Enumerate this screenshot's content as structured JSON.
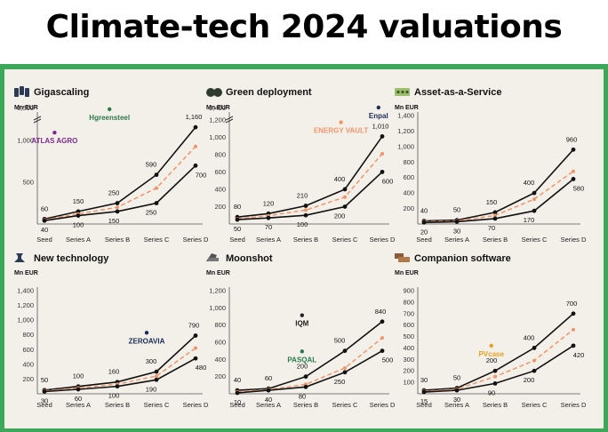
{
  "title": "Climate-tech 2024 valuations",
  "colors": {
    "frame": "#3da85a",
    "panel": "#f3f0ea",
    "series_main": "#111111",
    "series_median": "#f0956a"
  },
  "chart_data": [
    {
      "type": "line",
      "title": "Gigascaling",
      "icon": "battery-stack-icon",
      "ylabel": "Mn EUR",
      "categories": [
        "Seed",
        "Series A",
        "Series B",
        "Series C",
        "Series D"
      ],
      "ylim": [
        0,
        1300
      ],
      "yticks": [
        500,
        1000
      ],
      "ytick_labels": [
        "500",
        "1,000"
      ],
      "axis_break": true,
      "break_label": "3,500",
      "series": [
        {
          "role": "upper",
          "values": [
            60,
            150,
            250,
            590,
            1160
          ],
          "labels": [
            "60",
            "150",
            "250",
            "590",
            "1,160"
          ]
        },
        {
          "role": "middle",
          "values": [
            50,
            120,
            200,
            430,
            930
          ],
          "labels": []
        },
        {
          "role": "lower",
          "values": [
            40,
            100,
            150,
            250,
            700
          ],
          "labels": [
            "40",
            "100",
            "150",
            "250",
            "700"
          ]
        }
      ],
      "companies": [
        {
          "name": "Hgreensteel",
          "icon": "h2-green-steel-logo",
          "point": [
            1.8,
            1280
          ],
          "color": "#2a7a4a"
        },
        {
          "name": "ATLAS AGRO",
          "icon": "atlas-agro-logo",
          "point": [
            0.3,
            1000
          ],
          "color": "#7b2a8c"
        }
      ]
    },
    {
      "type": "line",
      "title": "Green deployment",
      "icon": "solar-panels-icon",
      "ylabel": "Mn EUR",
      "categories": [
        "Seed",
        "Series A",
        "Series B",
        "Series C",
        "Series D"
      ],
      "ylim": [
        0,
        1250
      ],
      "yticks": [
        200,
        400,
        600,
        800,
        1000,
        1200
      ],
      "ytick_labels": [
        "200",
        "400",
        "600",
        "800",
        "1,000",
        "1,200"
      ],
      "axis_break": true,
      "break_label": "2,400",
      "series": [
        {
          "role": "upper",
          "values": [
            80,
            120,
            210,
            400,
            1010
          ],
          "labels": [
            "80",
            "120",
            "210",
            "400",
            "1,010"
          ]
        },
        {
          "role": "middle",
          "values": [
            60,
            95,
            160,
            310,
            810
          ],
          "labels": []
        },
        {
          "role": "lower",
          "values": [
            50,
            70,
            100,
            200,
            600
          ],
          "labels": [
            "50",
            "70",
            "100",
            "200",
            "600"
          ]
        }
      ],
      "companies": [
        {
          "name": "Enpal",
          "icon": "enpal-logo",
          "point": [
            3.9,
            1250
          ],
          "color": "#1b2a5a"
        },
        {
          "name": "ENERGY VAULT",
          "icon": "energy-vault-logo",
          "point": [
            2.9,
            1080
          ],
          "color": "#f0956a"
        }
      ]
    },
    {
      "type": "line",
      "title": "Asset-as-a-Service",
      "icon": "battery-cells-icon",
      "ylabel": "Mn EUR",
      "categories": [
        "Seed",
        "Series A",
        "Series B",
        "Series C",
        "Series D"
      ],
      "ylim": [
        0,
        1400
      ],
      "yticks": [
        200,
        400,
        600,
        800,
        1000,
        1200,
        1400
      ],
      "ytick_labels": [
        "200",
        "400",
        "600",
        "800",
        "1,000",
        "1,200",
        "1,400"
      ],
      "axis_break": false,
      "series": [
        {
          "role": "upper",
          "values": [
            40,
            50,
            150,
            400,
            960
          ],
          "labels": [
            "40",
            "50",
            "150",
            "400",
            "960"
          ]
        },
        {
          "role": "middle",
          "values": [
            30,
            40,
            110,
            320,
            680
          ],
          "labels": []
        },
        {
          "role": "lower",
          "values": [
            20,
            30,
            70,
            170,
            580
          ],
          "labels": [
            "20",
            "30",
            "70",
            "170",
            "580"
          ]
        }
      ],
      "companies": []
    },
    {
      "type": "line",
      "title": "New technology",
      "icon": "flask-icon",
      "ylabel": "Mn EUR",
      "categories": [
        "Seed",
        "Series A",
        "Series B",
        "Series C",
        "Series D"
      ],
      "ylim": [
        0,
        1400
      ],
      "yticks": [
        200,
        400,
        600,
        800,
        1000,
        1200,
        1400
      ],
      "ytick_labels": [
        "200",
        "400",
        "600",
        "800",
        "1,000",
        "1,200",
        "1,400"
      ],
      "axis_break": false,
      "series": [
        {
          "role": "upper",
          "values": [
            50,
            100,
            160,
            300,
            790
          ],
          "labels": [
            "50",
            "100",
            "160",
            "300",
            "790"
          ]
        },
        {
          "role": "middle",
          "values": [
            40,
            80,
            130,
            240,
            620
          ],
          "labels": []
        },
        {
          "role": "lower",
          "values": [
            30,
            60,
            100,
            190,
            480
          ],
          "labels": [
            "30",
            "60",
            "100",
            "190",
            "480"
          ]
        }
      ],
      "companies": [
        {
          "name": "ZEROAVIA",
          "icon": "zeroavia-logo",
          "point": [
            2.75,
            720
          ],
          "color": "#1b2a5a"
        }
      ]
    },
    {
      "type": "line",
      "title": "Moonshot",
      "icon": "rocket-icon",
      "ylabel": "Mn EUR",
      "categories": [
        "Seed",
        "Series A",
        "Series B",
        "Series C",
        "Series D"
      ],
      "ylim": [
        0,
        1200
      ],
      "yticks": [
        200,
        400,
        600,
        800,
        1000,
        1200
      ],
      "ytick_labels": [
        "200",
        "400",
        "600",
        "800",
        "1,000",
        "1,200"
      ],
      "axis_break": false,
      "series": [
        {
          "role": "upper",
          "values": [
            40,
            60,
            200,
            500,
            840
          ],
          "labels": [
            "40",
            "60",
            "200",
            "500",
            "840"
          ]
        },
        {
          "role": "middle",
          "values": [
            25,
            50,
            110,
            300,
            650
          ],
          "labels": []
        },
        {
          "role": "lower",
          "values": [
            10,
            40,
            80,
            250,
            500
          ],
          "labels": [
            "10",
            "40",
            "80",
            "250",
            "500"
          ]
        }
      ],
      "companies": [
        {
          "name": "IQM",
          "icon": "iqm-logo",
          "point": [
            1.9,
            820
          ],
          "color": "#222222"
        },
        {
          "name": "PASQAL",
          "icon": "pasqal-logo",
          "point": [
            1.9,
            400
          ],
          "color": "#2a7a4a"
        }
      ]
    },
    {
      "type": "line",
      "title": "Companion software",
      "icon": "laptop-icon",
      "ylabel": "Mn EUR",
      "categories": [
        "Seed",
        "Series A",
        "Series B",
        "Series C",
        "Series D"
      ],
      "ylim": [
        0,
        900
      ],
      "yticks": [
        100,
        200,
        300,
        400,
        500,
        600,
        700,
        800,
        900
      ],
      "ytick_labels": [
        "100",
        "200",
        "300",
        "400",
        "500",
        "600",
        "700",
        "800",
        "900"
      ],
      "axis_break": false,
      "series": [
        {
          "role": "upper",
          "values": [
            30,
            50,
            200,
            400,
            700
          ],
          "labels": [
            "30",
            "50",
            "200",
            "400",
            "700"
          ]
        },
        {
          "role": "middle",
          "values": [
            22,
            40,
            150,
            290,
            560
          ],
          "labels": []
        },
        {
          "role": "lower",
          "values": [
            15,
            30,
            90,
            200,
            420
          ],
          "labels": [
            "15",
            "30",
            "90",
            "200",
            "420"
          ]
        }
      ],
      "companies": [
        {
          "name": "PVcase",
          "icon": "pvcase-logo",
          "point": [
            1.9,
            350
          ],
          "color": "#e8a020"
        }
      ]
    }
  ]
}
